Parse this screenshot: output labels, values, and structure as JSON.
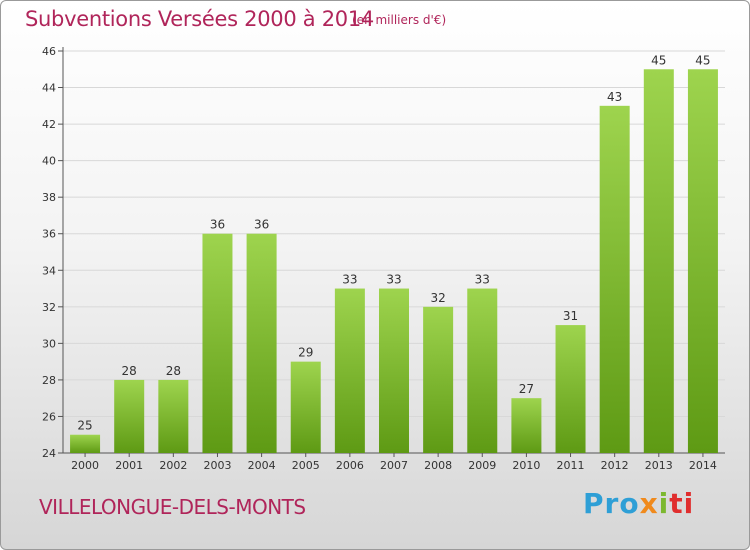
{
  "header": {
    "title": "Subventions Versées 2000 à 2014",
    "subtitle": "(en milliers d'€)"
  },
  "footer": {
    "commune": "VILLELONGUE-DELS-MONTS",
    "logo": [
      "Pro",
      "x",
      "i",
      "ti"
    ]
  },
  "colors": {
    "accent": "#b0255a",
    "bar_top": "#9ed44e",
    "bar_bottom": "#5e9a14",
    "grid": "#d8d8d8"
  },
  "chart_data": {
    "type": "bar",
    "title": "Subventions Versées 2000 à 2014",
    "subtitle": "(en milliers d'€)",
    "categories": [
      "2000",
      "2001",
      "2002",
      "2003",
      "2004",
      "2005",
      "2006",
      "2007",
      "2008",
      "2009",
      "2010",
      "2011",
      "2012",
      "2013",
      "2014"
    ],
    "values": [
      25,
      28,
      28,
      36,
      36,
      29,
      33,
      33,
      32,
      33,
      27,
      31,
      43,
      45,
      45
    ],
    "ylim": [
      24,
      46
    ],
    "yticks": [
      24,
      26,
      28,
      30,
      32,
      34,
      36,
      38,
      40,
      42,
      44,
      46
    ],
    "grid": true,
    "xlabel": "",
    "ylabel": ""
  }
}
